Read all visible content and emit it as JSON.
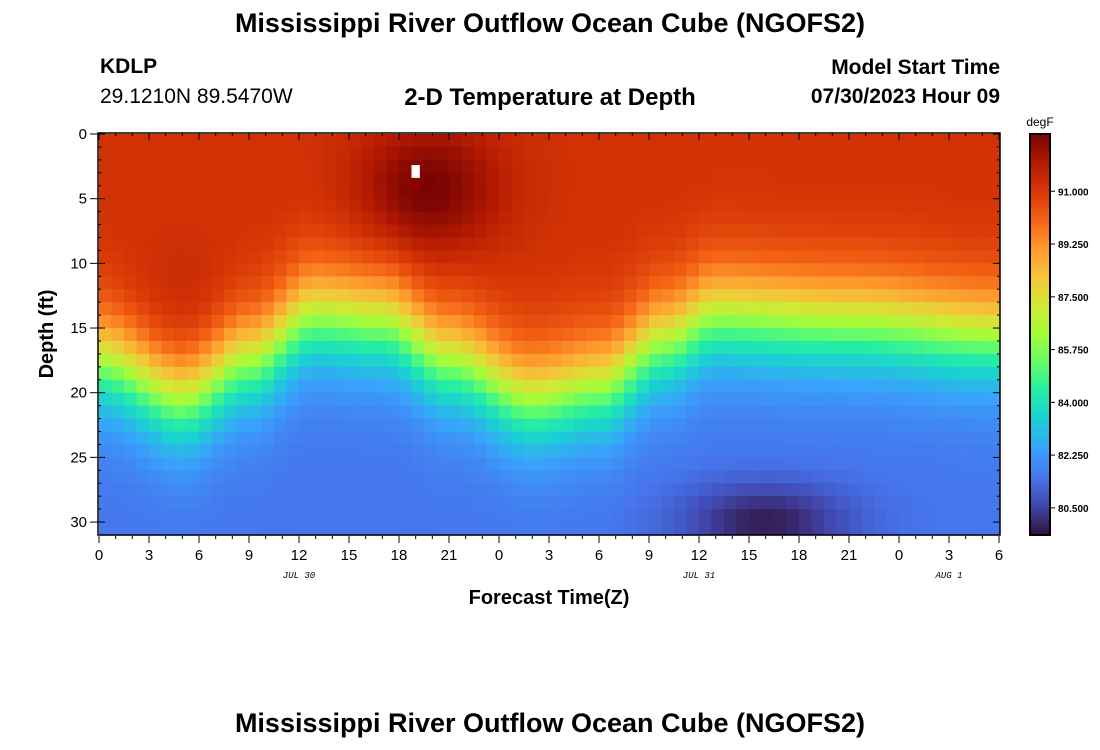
{
  "title": "Mississippi River Outflow Ocean Cube (NGOFS2)",
  "station": {
    "id": "KDLP",
    "coords": "29.1210N  89.5470W"
  },
  "subtitle": "2-D Temperature at Depth",
  "model_start": {
    "label": "Model Start Time",
    "value": "07/30/2023 Hour 09"
  },
  "colors": {
    "colormap": [
      "#30123b",
      "#4145ab",
      "#4675ed",
      "#39a2fc",
      "#1bcfd4",
      "#24eca6",
      "#61fc6c",
      "#a4fc3b",
      "#d1e834",
      "#f3c63a",
      "#fe9b2d",
      "#f36315",
      "#d93806",
      "#b11901",
      "#7a0402"
    ],
    "marker_white": "#ffffff",
    "marker_dark": "#8b0000"
  },
  "chart_data": {
    "type": "heatmap",
    "title": "2-D Temperature at Depth",
    "xlabel": "Forecast Time(Z)",
    "ylabel": "Depth (ft)",
    "x_range_hours": [
      0,
      54
    ],
    "xlim": [
      0,
      54
    ],
    "ylim": [
      31,
      0
    ],
    "x_tick_values": [
      0,
      3,
      6,
      9,
      12,
      15,
      18,
      21,
      24,
      27,
      30,
      33,
      36,
      39,
      42,
      45,
      48,
      51,
      54
    ],
    "x_tick_labels": [
      "0",
      "3",
      "6",
      "9",
      "12",
      "15",
      "18",
      "21",
      "0",
      "3",
      "6",
      "9",
      "12",
      "15",
      "18",
      "21",
      "0",
      "3",
      "6"
    ],
    "y_tick_values": [
      0,
      5,
      10,
      15,
      20,
      25,
      30
    ],
    "y_tick_labels": [
      "0",
      "5",
      "10",
      "15",
      "20",
      "25",
      "30"
    ],
    "date_labels": [
      {
        "hour": 12,
        "text": "JUL 30"
      },
      {
        "hour": 36,
        "text": "JUL 31"
      },
      {
        "hour": 51,
        "text": "AUG 1"
      }
    ],
    "colorbar": {
      "unit": "degF",
      "min": 79.6,
      "max": 92.9,
      "tick_values": [
        80.5,
        82.25,
        84.0,
        85.75,
        87.5,
        89.25,
        91.0
      ],
      "tick_labels": [
        "80.500",
        "82.250",
        "84.000",
        "85.750",
        "87.500",
        "89.250",
        "91.000"
      ]
    },
    "description_model": {
      "surface_temp_degF": 91.2,
      "bottom_temp_degF": 81.5,
      "thermocline_depth_ft": [
        [
          0,
          17.5
        ],
        [
          5,
          20.5
        ],
        [
          9,
          17.5
        ],
        [
          13,
          14
        ],
        [
          17,
          14.5
        ],
        [
          21,
          17.5
        ],
        [
          26,
          20.5
        ],
        [
          30,
          19.5
        ],
        [
          34,
          16
        ],
        [
          37,
          14
        ],
        [
          45,
          14.5
        ],
        [
          54,
          15.5
        ]
      ],
      "warm_cores": [
        {
          "hour": 19,
          "depth_ft": 4.5,
          "temp_degF": 92.4
        },
        {
          "hour": 21,
          "depth_ft": 4,
          "temp_degF": 91.9
        },
        {
          "hour": 5,
          "depth_ft": 14,
          "temp_degF": 91.6
        }
      ],
      "cold_core": {
        "hour": 40,
        "depth_ft": 30,
        "temp_degF": 79.8
      }
    }
  }
}
